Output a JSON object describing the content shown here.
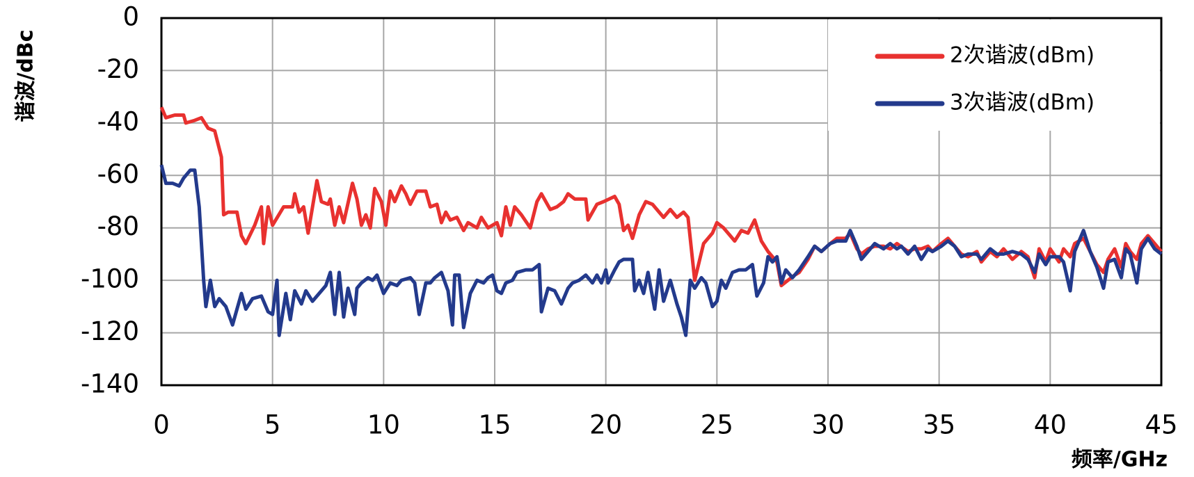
{
  "chart_data": {
    "type": "line",
    "x_label": "频率/GHz",
    "y_label": "谐波/dBc",
    "xlim": [
      0,
      45
    ],
    "xticks": [
      0,
      5,
      10,
      15,
      20,
      25,
      30,
      35,
      40,
      45
    ],
    "ylim": [
      -140,
      0
    ],
    "yticks": [
      0,
      -20,
      -40,
      -60,
      -80,
      -100,
      -120,
      -140
    ],
    "grid": true,
    "legend": "upper right",
    "series": [
      {
        "name": "2次谐波(dBm)",
        "color": "#e8312f",
        "x": [
          0,
          0.2,
          0.6,
          1.0,
          1.1,
          1.5,
          1.8,
          2.1,
          2.4,
          2.7,
          2.8,
          3.0,
          3.4,
          3.6,
          3.8,
          4.2,
          4.5,
          4.6,
          4.8,
          5.0,
          5.5,
          5.9,
          6.0,
          6.2,
          6.4,
          6.6,
          7.0,
          7.2,
          7.5,
          7.6,
          7.8,
          8.0,
          8.2,
          8.6,
          8.8,
          9.0,
          9.2,
          9.4,
          9.6,
          9.9,
          10.1,
          10.3,
          10.5,
          10.8,
          11.0,
          11.2,
          11.5,
          11.9,
          12.1,
          12.4,
          12.6,
          12.8,
          13.0,
          13.3,
          13.6,
          13.8,
          14.2,
          14.4,
          14.7,
          15.1,
          15.3,
          15.5,
          15.7,
          15.9,
          16.2,
          16.6,
          16.9,
          17.1,
          17.5,
          17.8,
          18.1,
          18.3,
          18.6,
          19.1,
          19.2,
          19.6,
          19.9,
          20.4,
          20.6,
          20.8,
          21.0,
          21.2,
          21.5,
          21.8,
          22.1,
          22.4,
          22.6,
          22.9,
          23.2,
          23.5,
          23.7,
          24.0,
          24.2,
          24.4,
          24.8,
          25.0,
          25.3,
          25.6,
          25.8,
          26.1,
          26.4,
          26.7,
          27.0,
          27.3,
          27.7,
          27.9,
          28.2,
          28.5,
          28.7,
          29.1,
          29.4,
          29.7,
          30.1,
          30.4,
          30.8,
          31.0,
          31.3,
          31.5,
          31.8,
          32.1,
          32.5,
          32.8,
          33.1,
          33.6,
          33.9,
          34.2,
          34.5,
          34.7,
          35.1,
          35.4,
          35.7,
          36.0,
          36.3,
          36.7,
          36.9,
          37.3,
          37.6,
          37.9,
          38.3,
          38.7,
          39.0,
          39.3,
          39.5,
          39.8,
          40.0,
          40.4,
          40.6,
          40.9,
          41.1,
          41.5,
          41.8,
          42.1,
          42.4,
          42.6,
          42.9,
          43.2,
          43.4,
          43.6,
          43.9,
          44.1,
          44.4,
          44.7,
          45.0
        ],
        "values": [
          -34,
          -38,
          -37,
          -37,
          -40,
          -39,
          -38,
          -42,
          -43,
          -53,
          -75,
          -74,
          -74,
          -83,
          -86,
          -79,
          -72,
          -86,
          -72,
          -79,
          -72,
          -72,
          -67,
          -74,
          -72,
          -82,
          -62,
          -70,
          -71,
          -69,
          -79,
          -72,
          -78,
          -63,
          -69,
          -79,
          -75,
          -80,
          -65,
          -70,
          -79,
          -66,
          -70,
          -64,
          -67,
          -71,
          -66,
          -66,
          -72,
          -71,
          -78,
          -74,
          -77,
          -76,
          -81,
          -78,
          -80,
          -76,
          -80,
          -78,
          -83,
          -72,
          -79,
          -72,
          -75,
          -80,
          -70,
          -67,
          -73,
          -72,
          -70,
          -67,
          -69,
          -69,
          -77,
          -71,
          -70,
          -68,
          -71,
          -81,
          -79,
          -84,
          -75,
          -70,
          -71,
          -74,
          -76,
          -73,
          -76,
          -74,
          -76,
          -100,
          -93,
          -86,
          -82,
          -78,
          -80,
          -83,
          -85,
          -81,
          -82,
          -77,
          -85,
          -89,
          -93,
          -102,
          -100,
          -98,
          -97,
          -92,
          -87,
          -89,
          -86,
          -84,
          -84,
          -82,
          -88,
          -90,
          -88,
          -87,
          -87,
          -88,
          -86,
          -89,
          -88,
          -88,
          -87,
          -89,
          -86,
          -84,
          -87,
          -90,
          -91,
          -89,
          -93,
          -89,
          -91,
          -88,
          -92,
          -89,
          -91,
          -99,
          -88,
          -93,
          -88,
          -93,
          -88,
          -91,
          -86,
          -84,
          -89,
          -94,
          -97,
          -92,
          -88,
          -95,
          -86,
          -89,
          -92,
          -86,
          -83,
          -86,
          -89
        ]
      },
      {
        "name": "3次谐波(dBm)",
        "color": "#233a8c",
        "x": [
          0,
          0.2,
          0.5,
          0.8,
          1.0,
          1.3,
          1.5,
          1.7,
          1.9,
          2.0,
          2.2,
          2.4,
          2.6,
          2.9,
          3.2,
          3.4,
          3.6,
          3.8,
          4.1,
          4.5,
          4.8,
          5.0,
          5.2,
          5.3,
          5.6,
          5.8,
          6.0,
          6.3,
          6.5,
          6.8,
          7.1,
          7.4,
          7.6,
          7.8,
          8.0,
          8.2,
          8.4,
          8.7,
          8.8,
          9.0,
          9.3,
          9.5,
          9.7,
          10.0,
          10.3,
          10.6,
          10.8,
          11.2,
          11.4,
          11.6,
          11.9,
          12.1,
          12.3,
          12.6,
          12.9,
          13.1,
          13.2,
          13.4,
          13.6,
          13.9,
          14.2,
          14.5,
          14.7,
          14.9,
          15.1,
          15.3,
          15.5,
          15.8,
          16.0,
          16.4,
          16.7,
          17.0,
          17.1,
          17.4,
          17.7,
          18.0,
          18.3,
          18.5,
          18.8,
          19.1,
          19.4,
          19.6,
          19.8,
          20.0,
          20.1,
          20.4,
          20.6,
          20.8,
          21.2,
          21.3,
          21.5,
          21.7,
          21.9,
          22.2,
          22.4,
          22.6,
          22.9,
          23.2,
          23.4,
          23.6,
          23.8,
          24.0,
          24.3,
          24.5,
          24.8,
          25.0,
          25.2,
          25.4,
          25.7,
          26.0,
          26.3,
          26.6,
          26.8,
          27.1,
          27.3,
          27.5,
          27.7,
          27.9,
          28.1,
          28.4,
          28.7,
          29.1,
          29.4,
          29.7,
          30.1,
          30.4,
          30.8,
          31.0,
          31.3,
          31.5,
          31.8,
          32.1,
          32.5,
          32.8,
          33.1,
          33.3,
          33.6,
          33.9,
          34.2,
          34.5,
          34.7,
          35.1,
          35.4,
          35.7,
          36.0,
          36.3,
          36.7,
          36.9,
          37.3,
          37.6,
          37.9,
          38.3,
          38.7,
          39.0,
          39.3,
          39.5,
          39.8,
          40.0,
          40.4,
          40.6,
          40.9,
          41.1,
          41.5,
          41.8,
          42.1,
          42.4,
          42.6,
          42.9,
          43.2,
          43.4,
          43.6,
          43.9,
          44.1,
          44.4,
          44.7,
          45.0
        ],
        "values": [
          -56,
          -63,
          -63,
          -64,
          -61,
          -58,
          -58,
          -72,
          -100,
          -110,
          -100,
          -110,
          -107,
          -110,
          -117,
          -111,
          -105,
          -111,
          -107,
          -106,
          -112,
          -113,
          -100,
          -121,
          -105,
          -115,
          -104,
          -109,
          -104,
          -108,
          -105,
          -102,
          -97,
          -113,
          -97,
          -114,
          -103,
          -113,
          -103,
          -101,
          -99,
          -100,
          -98,
          -105,
          -101,
          -102,
          -100,
          -99,
          -101,
          -113,
          -101,
          -101,
          -99,
          -97,
          -104,
          -117,
          -98,
          -98,
          -118,
          -105,
          -100,
          -101,
          -99,
          -98,
          -104,
          -105,
          -101,
          -100,
          -97,
          -96,
          -96,
          -94,
          -112,
          -103,
          -104,
          -109,
          -103,
          -101,
          -100,
          -98,
          -101,
          -98,
          -101,
          -96,
          -101,
          -96,
          -93,
          -92,
          -92,
          -104,
          -100,
          -105,
          -97,
          -111,
          -96,
          -108,
          -100,
          -109,
          -114,
          -121,
          -100,
          -103,
          -99,
          -101,
          -110,
          -108,
          -100,
          -103,
          -97,
          -96,
          -96,
          -94,
          -106,
          -101,
          -91,
          -93,
          -91,
          -101,
          -96,
          -99,
          -96,
          -91,
          -87,
          -89,
          -86,
          -85,
          -85,
          -81,
          -87,
          -92,
          -89,
          -86,
          -88,
          -86,
          -88,
          -87,
          -90,
          -87,
          -92,
          -88,
          -89,
          -87,
          -85,
          -87,
          -91,
          -90,
          -90,
          -92,
          -88,
          -90,
          -90,
          -89,
          -90,
          -92,
          -97,
          -90,
          -94,
          -91,
          -91,
          -93,
          -104,
          -89,
          -81,
          -89,
          -95,
          -103,
          -93,
          -92,
          -99,
          -88,
          -90,
          -101,
          -88,
          -84,
          -88,
          -90
        ]
      }
    ]
  }
}
